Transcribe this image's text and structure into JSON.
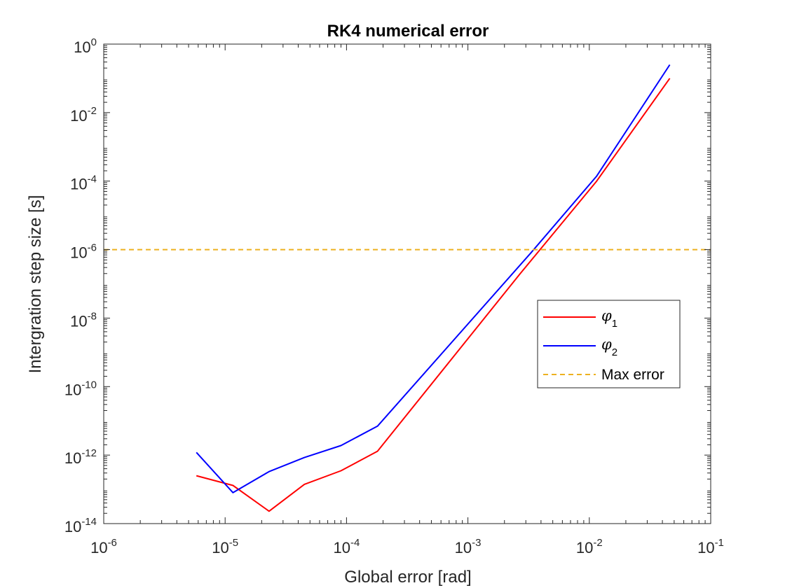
{
  "chart_data": {
    "type": "line",
    "title": "RK4 numerical error",
    "xlabel": "Global error [rad]",
    "ylabel": "Intergration step size [s]",
    "x_scale": "log",
    "y_scale": "log",
    "xlim": [
      1e-06,
      0.1
    ],
    "ylim": [
      1e-14,
      1
    ],
    "grid": false,
    "legend_position": "right",
    "x_tick_values": [
      1e-06,
      1e-05,
      0.0001,
      0.001,
      0.01,
      0.1
    ],
    "x_tick_labels": [
      {
        "base": "10",
        "exp": "-6"
      },
      {
        "base": "10",
        "exp": "-5"
      },
      {
        "base": "10",
        "exp": "-4"
      },
      {
        "base": "10",
        "exp": "-3"
      },
      {
        "base": "10",
        "exp": "-2"
      },
      {
        "base": "10",
        "exp": "-1"
      }
    ],
    "y_tick_values": [
      1e-14,
      1e-12,
      1e-10,
      1e-08,
      1e-06,
      0.0001,
      0.01,
      1
    ],
    "y_tick_labels": [
      {
        "base": "10",
        "exp": "-14"
      },
      {
        "base": "10",
        "exp": "-12"
      },
      {
        "base": "10",
        "exp": "-10"
      },
      {
        "base": "10",
        "exp": "-8"
      },
      {
        "base": "10",
        "exp": "-6"
      },
      {
        "base": "10",
        "exp": "-4"
      },
      {
        "base": "10",
        "exp": "-2"
      },
      {
        "base": "10",
        "exp": "0"
      }
    ],
    "series": [
      {
        "symbol": "φ",
        "subscript": "1",
        "color": "#ff0000",
        "style": "solid",
        "points": [
          [
            5.8e-06,
            2.5e-13
          ],
          [
            1.16e-05,
            1.3e-13
          ],
          [
            2.3e-05,
            2.3e-14
          ],
          [
            4.5e-05,
            1.4e-13
          ],
          [
            9e-05,
            3.5e-13
          ],
          [
            0.00018,
            1.3e-12
          ],
          [
            0.0027,
            2e-07
          ],
          [
            0.0115,
            0.0001
          ],
          [
            0.046,
            0.1
          ]
        ]
      },
      {
        "symbol": "φ",
        "subscript": "2",
        "color": "#0000ff",
        "style": "solid",
        "points": [
          [
            5.8e-06,
            1.2e-12
          ],
          [
            1.16e-05,
            8e-14
          ],
          [
            2.3e-05,
            3.3e-13
          ],
          [
            4.5e-05,
            8.5e-13
          ],
          [
            9e-05,
            1.9e-12
          ],
          [
            0.00018,
            7e-12
          ],
          [
            0.0033,
            8e-07
          ],
          [
            0.0115,
            0.00014
          ],
          [
            0.046,
            0.25
          ]
        ]
      },
      {
        "name": "Max error",
        "color": "#edb120",
        "style": "dashed",
        "y_constant": 1e-06
      }
    ]
  }
}
